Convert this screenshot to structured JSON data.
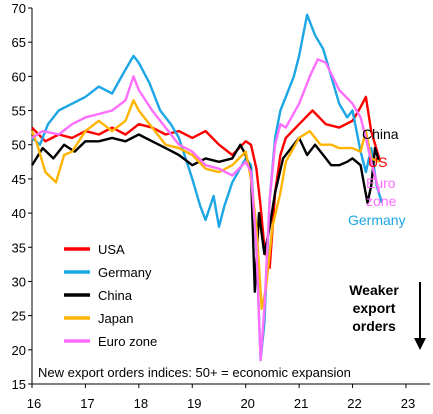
{
  "chart_data": {
    "type": "line",
    "title": "",
    "xlabel": "",
    "ylabel": "",
    "xlim": [
      2016.0,
      2023.45
    ],
    "ylim": [
      15,
      70
    ],
    "x_ticks": [
      16,
      17,
      18,
      19,
      20,
      21,
      22,
      23
    ],
    "y_ticks": [
      15,
      20,
      25,
      30,
      35,
      40,
      45,
      50,
      55,
      60,
      65,
      70
    ],
    "grid": false,
    "legend_position": "lower-left",
    "annotation": "New export orders indices: 50+ = economic expansion",
    "weaker_note": [
      "Weaker",
      "export",
      "orders"
    ],
    "series": [
      {
        "name": "USA",
        "label": "US",
        "color": "#ff0000",
        "legend_label": "USA",
        "end_label": "US",
        "points": [
          [
            2016.0,
            52.5
          ],
          [
            2016.25,
            50.5
          ],
          [
            2016.5,
            51.5
          ],
          [
            2016.75,
            51.0
          ],
          [
            2017.0,
            52.0
          ],
          [
            2017.25,
            51.5
          ],
          [
            2017.5,
            52.5
          ],
          [
            2017.75,
            51.5
          ],
          [
            2018.0,
            53.0
          ],
          [
            2018.25,
            52.5
          ],
          [
            2018.5,
            51.5
          ],
          [
            2018.75,
            52.0
          ],
          [
            2019.0,
            51.0
          ],
          [
            2019.25,
            52.0
          ],
          [
            2019.5,
            50.0
          ],
          [
            2019.75,
            48.5
          ],
          [
            2020.0,
            50.5
          ],
          [
            2020.1,
            50.0
          ],
          [
            2020.2,
            46.5
          ],
          [
            2020.28,
            41.0
          ],
          [
            2020.35,
            35.0
          ],
          [
            2020.45,
            32.0
          ],
          [
            2020.55,
            43.0
          ],
          [
            2020.65,
            48.5
          ],
          [
            2020.75,
            51.0
          ],
          [
            2021.0,
            53.0
          ],
          [
            2021.25,
            55.0
          ],
          [
            2021.5,
            53.0
          ],
          [
            2021.75,
            52.5
          ],
          [
            2022.0,
            53.5
          ],
          [
            2022.15,
            55.5
          ],
          [
            2022.25,
            57.0
          ],
          [
            2022.35,
            52.0
          ],
          [
            2022.5,
            48.0
          ]
        ]
      },
      {
        "name": "Germany",
        "label": "Germany",
        "color": "#1ca6e6",
        "legend_label": "Germany",
        "end_label": "Germany",
        "points": [
          [
            2016.0,
            51.0
          ],
          [
            2016.15,
            50.0
          ],
          [
            2016.3,
            53.0
          ],
          [
            2016.5,
            55.0
          ],
          [
            2016.75,
            56.0
          ],
          [
            2017.0,
            57.0
          ],
          [
            2017.25,
            58.5
          ],
          [
            2017.5,
            57.5
          ],
          [
            2017.75,
            61.0
          ],
          [
            2017.9,
            63.0
          ],
          [
            2018.0,
            62.0
          ],
          [
            2018.2,
            59.0
          ],
          [
            2018.4,
            55.0
          ],
          [
            2018.6,
            53.0
          ],
          [
            2018.75,
            51.0
          ],
          [
            2019.0,
            45.0
          ],
          [
            2019.15,
            41.0
          ],
          [
            2019.25,
            39.0
          ],
          [
            2019.4,
            42.5
          ],
          [
            2019.5,
            38.0
          ],
          [
            2019.6,
            41.0
          ],
          [
            2019.75,
            44.5
          ],
          [
            2020.0,
            48.0
          ],
          [
            2020.1,
            47.0
          ],
          [
            2020.2,
            35.0
          ],
          [
            2020.28,
            18.5
          ],
          [
            2020.35,
            24.0
          ],
          [
            2020.45,
            42.0
          ],
          [
            2020.55,
            51.0
          ],
          [
            2020.65,
            55.0
          ],
          [
            2020.75,
            57.0
          ],
          [
            2020.9,
            60.0
          ],
          [
            2021.0,
            63.0
          ],
          [
            2021.15,
            69.0
          ],
          [
            2021.3,
            66.0
          ],
          [
            2021.45,
            64.0
          ],
          [
            2021.6,
            60.0
          ],
          [
            2021.75,
            56.0
          ],
          [
            2021.9,
            54.0
          ],
          [
            2022.0,
            55.0
          ],
          [
            2022.15,
            49.0
          ],
          [
            2022.25,
            46.0
          ],
          [
            2022.35,
            49.5
          ],
          [
            2022.45,
            44.0
          ],
          [
            2022.55,
            41.5
          ]
        ]
      },
      {
        "name": "China",
        "label": "China",
        "color": "#000000",
        "legend_label": "China",
        "end_label": "China",
        "points": [
          [
            2016.0,
            47.0
          ],
          [
            2016.2,
            49.5
          ],
          [
            2016.4,
            48.0
          ],
          [
            2016.6,
            50.0
          ],
          [
            2016.8,
            49.0
          ],
          [
            2017.0,
            50.5
          ],
          [
            2017.25,
            50.5
          ],
          [
            2017.5,
            51.0
          ],
          [
            2017.75,
            50.5
          ],
          [
            2018.0,
            51.5
          ],
          [
            2018.25,
            50.5
          ],
          [
            2018.5,
            49.5
          ],
          [
            2018.75,
            48.5
          ],
          [
            2019.0,
            47.0
          ],
          [
            2019.25,
            48.0
          ],
          [
            2019.5,
            47.5
          ],
          [
            2019.75,
            48.0
          ],
          [
            2019.9,
            50.0
          ],
          [
            2020.0,
            48.5
          ],
          [
            2020.1,
            46.0
          ],
          [
            2020.17,
            28.5
          ],
          [
            2020.25,
            40.0
          ],
          [
            2020.35,
            34.0
          ],
          [
            2020.45,
            38.0
          ],
          [
            2020.55,
            43.0
          ],
          [
            2020.7,
            48.0
          ],
          [
            2020.85,
            49.5
          ],
          [
            2021.0,
            51.0
          ],
          [
            2021.15,
            48.5
          ],
          [
            2021.3,
            50.0
          ],
          [
            2021.45,
            48.5
          ],
          [
            2021.6,
            47.0
          ],
          [
            2021.75,
            47.0
          ],
          [
            2021.9,
            47.5
          ],
          [
            2022.0,
            48.0
          ],
          [
            2022.15,
            47.0
          ],
          [
            2022.22,
            44.0
          ],
          [
            2022.28,
            41.5
          ],
          [
            2022.35,
            44.0
          ],
          [
            2022.42,
            49.5
          ],
          [
            2022.5,
            47.5
          ]
        ]
      },
      {
        "name": "Japan",
        "label": "Japan",
        "color": "#ffb400",
        "legend_label": "Japan",
        "end_label": "",
        "points": [
          [
            2016.0,
            52.0
          ],
          [
            2016.1,
            50.0
          ],
          [
            2016.25,
            46.0
          ],
          [
            2016.45,
            44.5
          ],
          [
            2016.6,
            48.5
          ],
          [
            2016.75,
            49.0
          ],
          [
            2017.0,
            52.0
          ],
          [
            2017.25,
            53.5
          ],
          [
            2017.5,
            52.0
          ],
          [
            2017.75,
            53.5
          ],
          [
            2017.9,
            56.5
          ],
          [
            2018.0,
            55.0
          ],
          [
            2018.25,
            52.5
          ],
          [
            2018.5,
            50.0
          ],
          [
            2018.75,
            49.5
          ],
          [
            2019.0,
            48.5
          ],
          [
            2019.25,
            46.5
          ],
          [
            2019.5,
            46.0
          ],
          [
            2019.75,
            47.0
          ],
          [
            2020.0,
            49.0
          ],
          [
            2020.1,
            45.0
          ],
          [
            2020.2,
            38.0
          ],
          [
            2020.3,
            26.0
          ],
          [
            2020.38,
            29.0
          ],
          [
            2020.5,
            38.0
          ],
          [
            2020.65,
            43.0
          ],
          [
            2020.75,
            47.5
          ],
          [
            2021.0,
            51.0
          ],
          [
            2021.2,
            52.0
          ],
          [
            2021.4,
            50.0
          ],
          [
            2021.6,
            50.0
          ],
          [
            2021.75,
            49.5
          ],
          [
            2022.0,
            49.5
          ],
          [
            2022.15,
            49.0
          ],
          [
            2022.25,
            52.0
          ],
          [
            2022.35,
            48.0
          ],
          [
            2022.5,
            47.5
          ]
        ]
      },
      {
        "name": "Euro zone",
        "label": "Euro zone",
        "color": "#ff6eff",
        "legend_label": "Euro zone",
        "end_label": "Euro\nzone",
        "points": [
          [
            2016.0,
            51.0
          ],
          [
            2016.2,
            52.0
          ],
          [
            2016.5,
            51.5
          ],
          [
            2016.75,
            53.0
          ],
          [
            2017.0,
            54.0
          ],
          [
            2017.25,
            54.5
          ],
          [
            2017.5,
            55.0
          ],
          [
            2017.75,
            56.5
          ],
          [
            2017.9,
            60.0
          ],
          [
            2018.0,
            58.0
          ],
          [
            2018.25,
            55.0
          ],
          [
            2018.5,
            52.5
          ],
          [
            2018.75,
            50.0
          ],
          [
            2019.0,
            49.0
          ],
          [
            2019.25,
            47.0
          ],
          [
            2019.5,
            46.5
          ],
          [
            2019.75,
            45.5
          ],
          [
            2020.0,
            47.5
          ],
          [
            2020.1,
            46.0
          ],
          [
            2020.2,
            35.0
          ],
          [
            2020.28,
            18.5
          ],
          [
            2020.35,
            26.0
          ],
          [
            2020.45,
            42.0
          ],
          [
            2020.55,
            50.0
          ],
          [
            2020.65,
            53.0
          ],
          [
            2020.75,
            52.5
          ],
          [
            2021.0,
            56.0
          ],
          [
            2021.2,
            60.0
          ],
          [
            2021.35,
            62.5
          ],
          [
            2021.5,
            62.0
          ],
          [
            2021.75,
            58.0
          ],
          [
            2022.0,
            56.0
          ],
          [
            2022.15,
            54.0
          ],
          [
            2022.25,
            51.0
          ],
          [
            2022.35,
            47.5
          ],
          [
            2022.5,
            43.0
          ]
        ]
      }
    ]
  }
}
